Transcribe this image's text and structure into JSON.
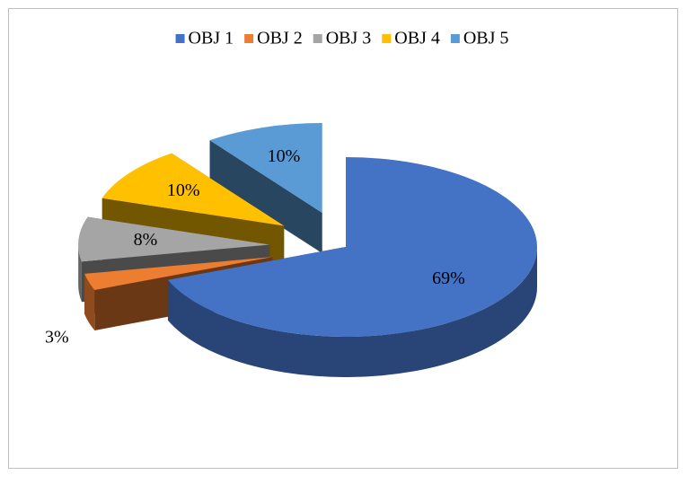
{
  "chart_data": {
    "type": "pie",
    "categories": [
      "OBJ 1",
      "OBJ 2",
      "OBJ 3",
      "OBJ 4",
      "OBJ 5"
    ],
    "values": [
      69,
      3,
      8,
      10,
      10
    ],
    "value_labels": [
      "69%",
      "3%",
      "8%",
      "10%",
      "10%"
    ],
    "colors": [
      "#4472c4",
      "#ed7d31",
      "#a5a5a5",
      "#ffc000",
      "#5b9bd5"
    ],
    "legend": "top"
  }
}
